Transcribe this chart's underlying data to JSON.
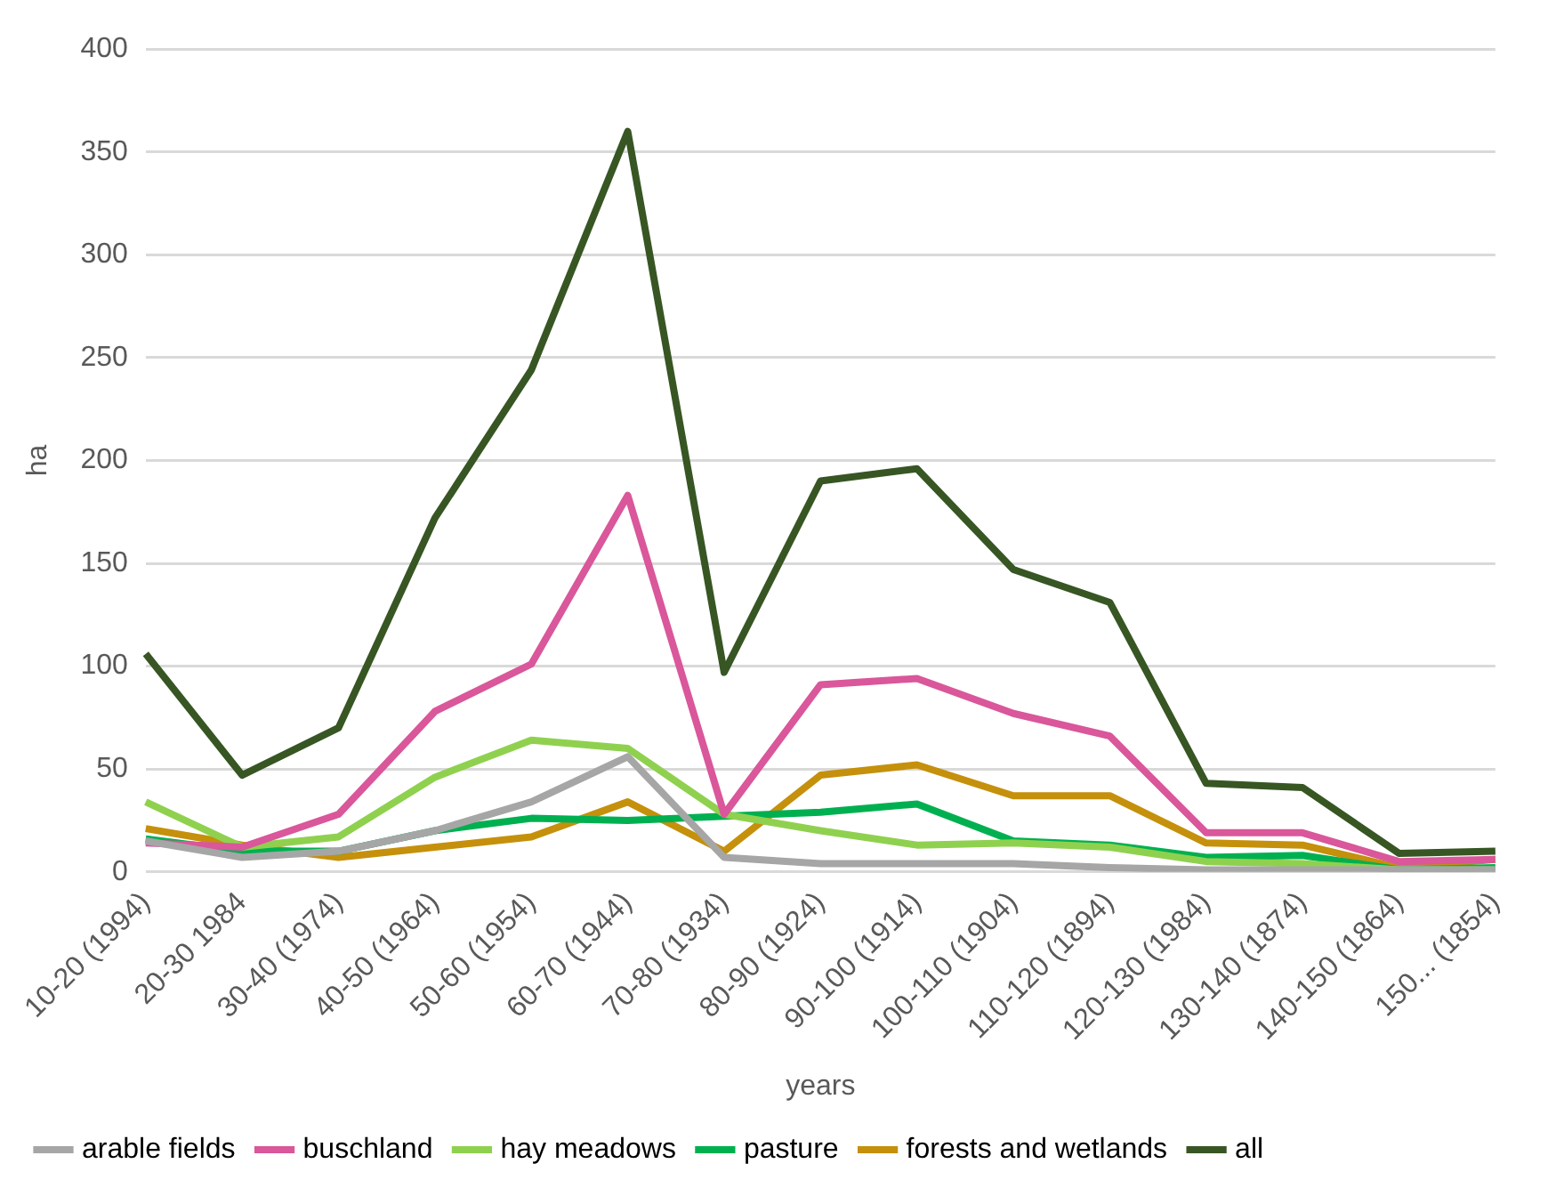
{
  "chart_data": {
    "type": "line",
    "xlabel": "years",
    "ylabel": "ha",
    "categories": [
      "10-20 (1994)",
      "20-30 1984",
      "30-40 (1974)",
      "40-50 (1964)",
      "50-60 (1954)",
      "60-70 (1944)",
      "70-80 (1934)",
      "80-90 (1924)",
      "90-100 (1914)",
      "100-110 (1904)",
      "110-120 (1894)",
      "120-130 (1984)",
      "130-140 (1874)",
      "140-150 (1864)",
      "150... (1854)"
    ],
    "series": [
      {
        "name": "arable fields",
        "color": "#a6a6a6",
        "values": [
          15,
          7,
          10,
          20,
          34,
          56,
          7,
          4,
          4,
          4,
          2,
          1,
          1,
          1,
          1
        ]
      },
      {
        "name": "buschland",
        "color": "#d9579a",
        "values": [
          14,
          12,
          28,
          78,
          101,
          183,
          28,
          91,
          94,
          77,
          66,
          19,
          19,
          5,
          6
        ]
      },
      {
        "name": "hay meadows",
        "color": "#8fd14f",
        "values": [
          34,
          12,
          17,
          46,
          64,
          60,
          28,
          20,
          13,
          14,
          12,
          5,
          4,
          1,
          1
        ]
      },
      {
        "name": "pasture",
        "color": "#00b050",
        "values": [
          16,
          10,
          10,
          20,
          26,
          25,
          27,
          29,
          33,
          15,
          13,
          7,
          8,
          1,
          2
        ]
      },
      {
        "name": "forests and wetlands",
        "color": "#c5900b",
        "values": [
          21,
          13,
          7,
          12,
          17,
          34,
          10,
          47,
          52,
          37,
          37,
          14,
          13,
          2,
          6
        ]
      },
      {
        "name": "all",
        "color": "#375623",
        "values": [
          106,
          47,
          70,
          172,
          244,
          360,
          97,
          190,
          196,
          147,
          131,
          43,
          41,
          9,
          10
        ]
      }
    ],
    "ylim": [
      0,
      400
    ],
    "yticks": [
      0,
      50,
      100,
      150,
      200,
      250,
      300,
      350,
      400
    ],
    "grid": "y",
    "legend": "bottom",
    "marker": "none",
    "line_style": "solid"
  }
}
